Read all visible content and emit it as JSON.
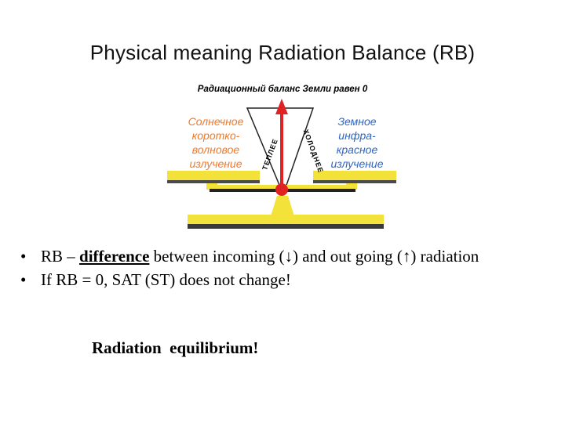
{
  "title": "Physical meaning Radiation Balance (RB)",
  "figure": {
    "caption": "Радиационный баланс Земли равен 0",
    "solar_lines": [
      "Солнечное",
      "коротко-",
      "волновое",
      "излучение"
    ],
    "terrestrial_lines": [
      "Земное",
      "инфра-",
      "красное",
      "излучение"
    ],
    "warmer": "ТЕПЛЕЕ",
    "colder": "ХОЛОДНЕЕ",
    "colors": {
      "beam": "#f2e23a",
      "needle": "#e02222",
      "solar_text": "#f07a2a",
      "terr_text": "#2d66c4",
      "pan_shadow": "#4a4a4a"
    }
  },
  "bullets": [
    {
      "bullet": "•",
      "before": "RB – ",
      "emphasis": "difference",
      "after": " between incoming (↓) and  out  going (↑) radiation"
    },
    {
      "bullet": "•",
      "text": "If RB = 0, SAT (ST) does  not  change!"
    }
  ],
  "equilibrium": "Radiation  equilibrium!"
}
